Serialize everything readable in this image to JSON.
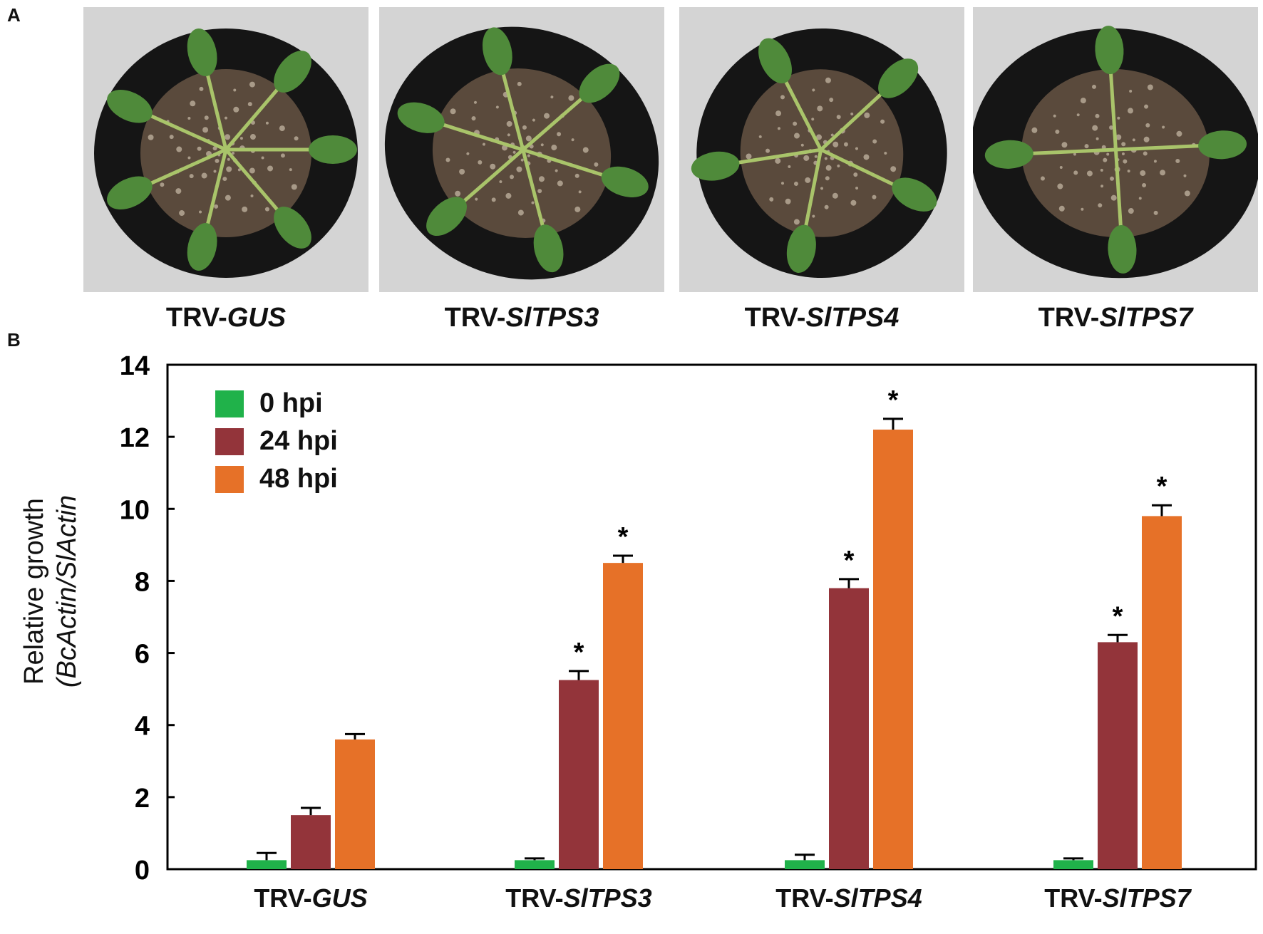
{
  "panels": {
    "a_letter": "A",
    "b_letter": "B"
  },
  "photos": [
    {
      "prefix": "TRV-",
      "gene": "GUS"
    },
    {
      "prefix": "TRV-",
      "gene": "SlTPS3"
    },
    {
      "prefix": "TRV-",
      "gene": "SlTPS4"
    },
    {
      "prefix": "TRV-",
      "gene": "SlTPS7"
    }
  ],
  "colors": {
    "hpi0": "#20b24a",
    "hpi24": "#93343a",
    "hpi48": "#e67128",
    "photo_bg": "#d4d4d4",
    "pot": "#151515",
    "soil": "#5a4a3c",
    "leaf": "#4f8a3a"
  },
  "chart_data": {
    "type": "bar",
    "categories": [
      "TRV-GUS",
      "TRV-SlTPS3",
      "TRV-SlTPS4",
      "TRV-SlTPS7"
    ],
    "category_parts": [
      {
        "prefix": "TRV-",
        "gene": "GUS"
      },
      {
        "prefix": "TRV-",
        "gene": "SlTPS3"
      },
      {
        "prefix": "TRV-",
        "gene": "SlTPS4"
      },
      {
        "prefix": "TRV-",
        "gene": "SlTPS7"
      }
    ],
    "series": [
      {
        "name": "0 hpi",
        "values": [
          0.25,
          0.25,
          0.25,
          0.25
        ],
        "errors": [
          0.2,
          0.05,
          0.15,
          0.05
        ],
        "significant": [
          false,
          false,
          false,
          false
        ]
      },
      {
        "name": "24 hpi",
        "values": [
          1.5,
          5.25,
          7.8,
          6.3
        ],
        "errors": [
          0.2,
          0.25,
          0.25,
          0.2
        ],
        "significant": [
          false,
          true,
          true,
          true
        ]
      },
      {
        "name": "48 hpi",
        "values": [
          3.6,
          8.5,
          12.2,
          9.8
        ],
        "errors": [
          0.15,
          0.2,
          0.3,
          0.3
        ],
        "significant": [
          false,
          true,
          true,
          true
        ]
      }
    ],
    "significance_marker": "*",
    "ylabel_line1": "Relative growth",
    "ylabel_line2": "(BcActin/SlActin",
    "ylim": [
      0,
      14
    ],
    "yticks": [
      0,
      2,
      4,
      6,
      8,
      10,
      12,
      14
    ],
    "legend_position": "top-left",
    "grid": false
  }
}
